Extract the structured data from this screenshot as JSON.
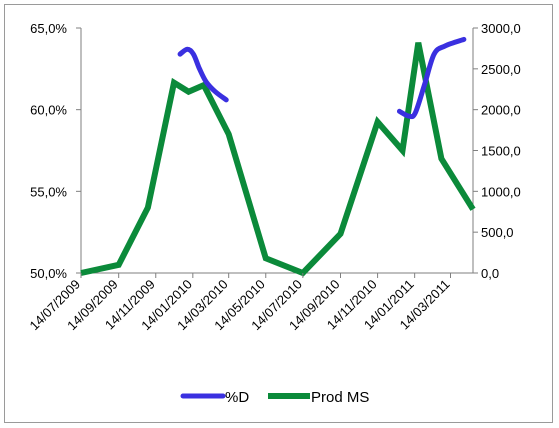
{
  "chart_data": {
    "type": "line",
    "title": "",
    "xlabel": "",
    "ylabel_left": "",
    "ylabel_right": "",
    "x_tick_labels": [
      "14/07/2009",
      "14/09/2009",
      "14/11/2009",
      "14/01/2010",
      "14/03/2010",
      "14/05/2010",
      "14/07/2010",
      "14/09/2010",
      "14/11/2010",
      "14/01/2011",
      "14/03/2011"
    ],
    "x_range": [
      "2009-07-14",
      "2011-04-20"
    ],
    "y_left": {
      "ticks": [
        "50,0%",
        "55,0%",
        "60,0%",
        "65,0%"
      ],
      "min": 50,
      "max": 65
    },
    "y_right": {
      "ticks": [
        "0,0",
        "500,0",
        "1000,0",
        "1500,0",
        "2000,0",
        "2500,0",
        "3000,0"
      ],
      "min": 0,
      "max": 3000
    },
    "legend_position": "bottom",
    "series": [
      {
        "name": "%D",
        "axis": "left",
        "color": "#3a30e0",
        "segments": [
          [
            {
              "x": "2009-12-24",
              "y": 63.4
            },
            {
              "x": "2010-01-05",
              "y": 63.7
            },
            {
              "x": "2010-01-15",
              "y": 63.4
            },
            {
              "x": "2010-01-25",
              "y": 62.5
            },
            {
              "x": "2010-02-05",
              "y": 61.7
            },
            {
              "x": "2010-02-20",
              "y": 61.1
            },
            {
              "x": "2010-03-10",
              "y": 60.6
            }
          ],
          [
            {
              "x": "2010-12-20",
              "y": 59.9
            },
            {
              "x": "2011-01-05",
              "y": 59.6
            },
            {
              "x": "2011-01-15",
              "y": 59.8
            },
            {
              "x": "2011-01-30",
              "y": 61.5
            },
            {
              "x": "2011-02-15",
              "y": 63.4
            },
            {
              "x": "2011-03-05",
              "y": 63.9
            },
            {
              "x": "2011-04-05",
              "y": 64.3
            }
          ]
        ]
      },
      {
        "name": "Prod MS",
        "axis": "right",
        "color": "#0b8a3a",
        "points": [
          {
            "x": "2009-07-14",
            "y": 0
          },
          {
            "x": "2009-09-14",
            "y": 100
          },
          {
            "x": "2009-11-01",
            "y": 800
          },
          {
            "x": "2009-12-14",
            "y": 2330
          },
          {
            "x": "2010-01-07",
            "y": 2220
          },
          {
            "x": "2010-02-01",
            "y": 2300
          },
          {
            "x": "2010-03-14",
            "y": 1700
          },
          {
            "x": "2010-05-14",
            "y": 180
          },
          {
            "x": "2010-07-14",
            "y": 0
          },
          {
            "x": "2010-09-14",
            "y": 480
          },
          {
            "x": "2010-11-14",
            "y": 1850
          },
          {
            "x": "2010-12-25",
            "y": 1500
          },
          {
            "x": "2011-01-20",
            "y": 2820
          },
          {
            "x": "2011-02-27",
            "y": 1400
          },
          {
            "x": "2011-04-20",
            "y": 780
          }
        ]
      }
    ]
  }
}
